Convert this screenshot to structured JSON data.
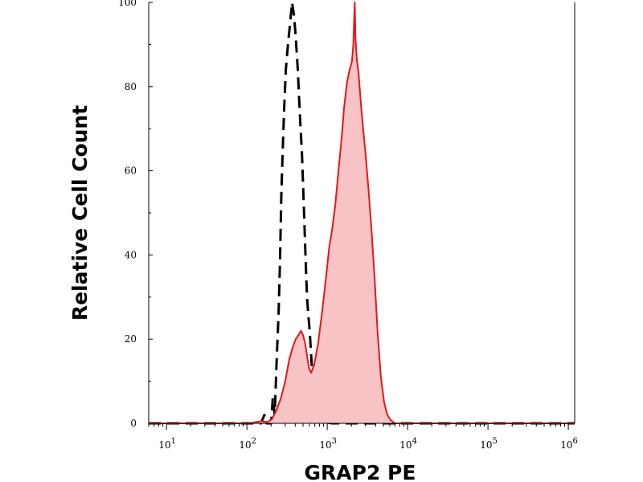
{
  "chart_data": {
    "type": "area",
    "xlabel": "GRAP2 PE",
    "ylabel": "Relative Cell Count",
    "x_scale": "log",
    "xlim": [
      6,
      1200000
    ],
    "ylim": [
      0,
      100
    ],
    "grid": false,
    "legend": "none",
    "x_ticks": [
      {
        "value": 10,
        "base": "10",
        "exp": "1"
      },
      {
        "value": 100,
        "base": "10",
        "exp": "2"
      },
      {
        "value": 1000,
        "base": "10",
        "exp": "3"
      },
      {
        "value": 10000,
        "base": "10",
        "exp": "4"
      },
      {
        "value": 100000,
        "base": "10",
        "exp": "5"
      },
      {
        "value": 1000000,
        "base": "10",
        "exp": "6"
      }
    ],
    "y_ticks": [
      0,
      20,
      40,
      60,
      80,
      100
    ],
    "series": [
      {
        "style": "dashed",
        "color": "#000000",
        "filled": false,
        "points": [
          [
            6,
            0
          ],
          [
            150,
            0
          ],
          [
            165,
            2
          ],
          [
            175,
            0
          ],
          [
            200,
            0
          ],
          [
            210,
            6
          ],
          [
            222,
            2
          ],
          [
            236,
            16
          ],
          [
            248,
            26
          ],
          [
            258,
            38
          ],
          [
            268,
            54
          ],
          [
            278,
            64
          ],
          [
            290,
            74
          ],
          [
            305,
            84
          ],
          [
            325,
            90
          ],
          [
            345,
            95
          ],
          [
            365,
            100
          ],
          [
            385,
            97
          ],
          [
            405,
            92
          ],
          [
            430,
            84
          ],
          [
            455,
            74
          ],
          [
            485,
            64
          ],
          [
            515,
            50
          ],
          [
            540,
            38
          ],
          [
            560,
            30
          ],
          [
            580,
            26
          ],
          [
            605,
            22
          ],
          [
            640,
            14
          ],
          [
            680,
            8
          ],
          [
            730,
            4
          ],
          [
            790,
            1.5
          ],
          [
            870,
            0.5
          ],
          [
            980,
            0.2
          ],
          [
            1150,
            0
          ],
          [
            1200000,
            0
          ]
        ]
      },
      {
        "style": "solid",
        "color": "#e8151b",
        "fill": "#f7c3c5",
        "filled": true,
        "points": [
          [
            6,
            0
          ],
          [
            105,
            0
          ],
          [
            150,
            0.5
          ],
          [
            180,
            0.3
          ],
          [
            205,
            1
          ],
          [
            232,
            3
          ],
          [
            265,
            6
          ],
          [
            300,
            10
          ],
          [
            335,
            15
          ],
          [
            370,
            18
          ],
          [
            405,
            20
          ],
          [
            440,
            21
          ],
          [
            470,
            22
          ],
          [
            500,
            21
          ],
          [
            530,
            19
          ],
          [
            560,
            16
          ],
          [
            595,
            13
          ],
          [
            630,
            12
          ],
          [
            690,
            14
          ],
          [
            770,
            19
          ],
          [
            870,
            27
          ],
          [
            970,
            35
          ],
          [
            1060,
            42
          ],
          [
            1150,
            46
          ],
          [
            1260,
            52
          ],
          [
            1380,
            60
          ],
          [
            1500,
            67
          ],
          [
            1620,
            75
          ],
          [
            1760,
            81
          ],
          [
            1900,
            84
          ],
          [
            2030,
            86
          ],
          [
            2110,
            90
          ],
          [
            2170,
            97
          ],
          [
            2200,
            100
          ],
          [
            2240,
            92
          ],
          [
            2320,
            87
          ],
          [
            2460,
            83
          ],
          [
            2620,
            76
          ],
          [
            2800,
            70
          ],
          [
            3000,
            64
          ],
          [
            3250,
            56
          ],
          [
            3550,
            46
          ],
          [
            3900,
            34
          ],
          [
            4250,
            21
          ],
          [
            4650,
            11
          ],
          [
            5100,
            5
          ],
          [
            5600,
            2
          ],
          [
            6200,
            0.7
          ],
          [
            7000,
            0
          ],
          [
            1200000,
            0
          ]
        ]
      }
    ]
  }
}
